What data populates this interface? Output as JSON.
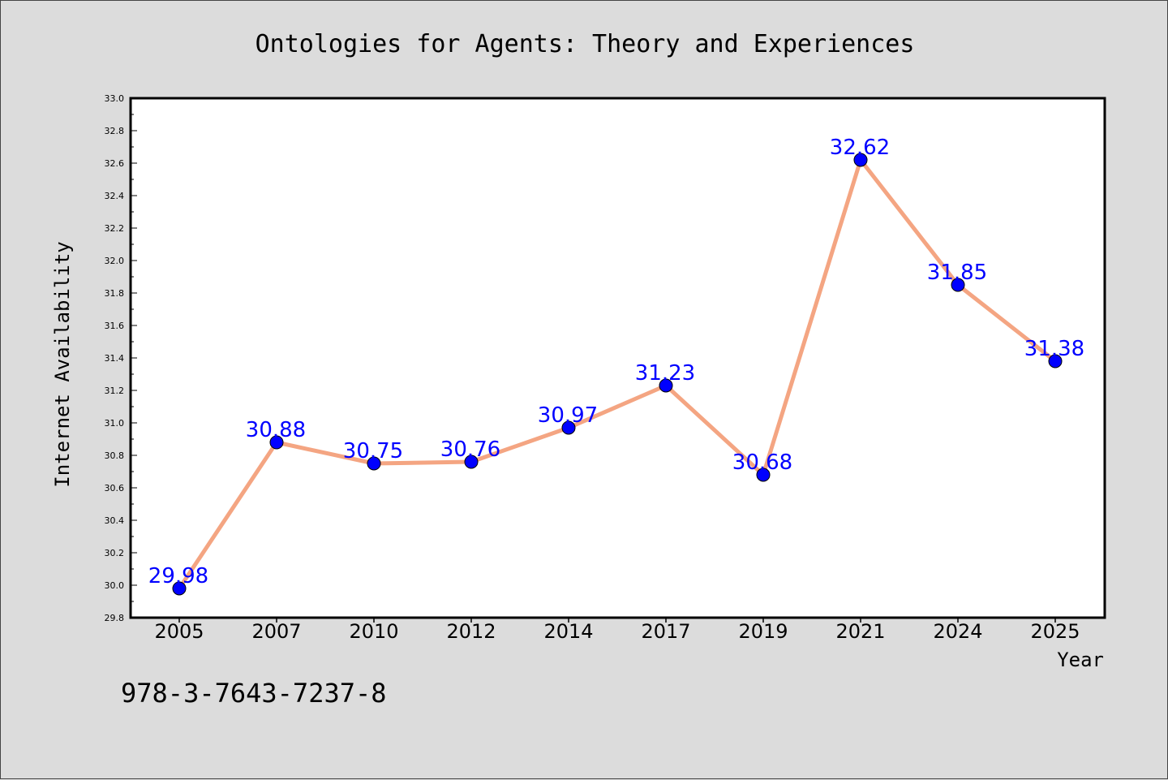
{
  "chart_data": {
    "type": "line",
    "title": "Ontologies for Agents: Theory and Experiences",
    "xlabel": "Year",
    "ylabel": "Internet Availability",
    "categories": [
      "2005",
      "2007",
      "2010",
      "2012",
      "2014",
      "2017",
      "2019",
      "2021",
      "2024",
      "2025"
    ],
    "series": [
      {
        "values": [
          29.98,
          30.88,
          30.75,
          30.76,
          30.97,
          31.23,
          30.68,
          32.62,
          31.85,
          31.38
        ]
      }
    ],
    "data_labels": [
      "29.98",
      "30.88",
      "30.75",
      "30.76",
      "30.97",
      "31.23",
      "30.68",
      "32.62",
      "31.85",
      "31.38"
    ],
    "ylim": [
      29.8,
      33.0
    ],
    "yticks": [
      "29.8",
      "30.0",
      "30.2",
      "30.4",
      "30.6",
      "30.8",
      "31.0",
      "31.2",
      "31.4",
      "31.6",
      "31.8",
      "32.0",
      "32.2",
      "32.4",
      "32.6",
      "32.8",
      "33.0"
    ],
    "grid": false,
    "legend": "none",
    "colors": {
      "line": "#f4a582",
      "marker": "#0000ff",
      "data_label": "#0000ff",
      "plot_background": "#ffffff",
      "figure_background": "#dcdcdc"
    }
  },
  "footer": {
    "isbn": "978-3-7643-7237-8"
  }
}
